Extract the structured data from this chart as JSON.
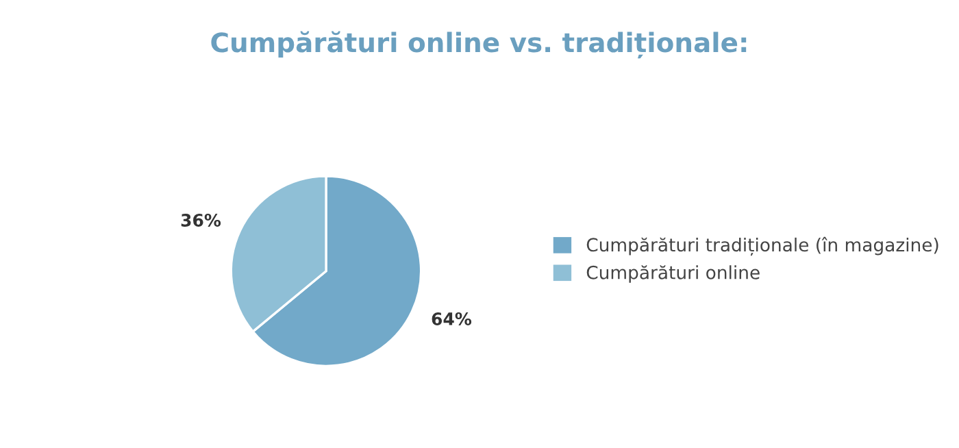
{
  "chart_data": {
    "type": "pie",
    "title": "Cumpărături online vs. tradiționale:",
    "categories": [
      "Cumpărături tradiționale (în magazine)",
      "Cumpărături online"
    ],
    "values": [
      64,
      36
    ],
    "colors": [
      "#72a9c9",
      "#8fbfd6"
    ],
    "value_labels": [
      "64%",
      "36%"
    ],
    "legend": "right"
  }
}
